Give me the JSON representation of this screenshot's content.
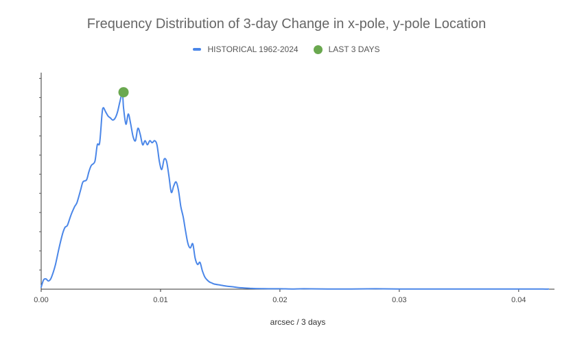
{
  "chart_data": {
    "type": "line",
    "title": "Frequency Distribution of 3-day Change in x-pole, y-pole Location",
    "xlabel": "arcsec / 3 days",
    "ylabel": "",
    "xlim": [
      0,
      0.043
    ],
    "ylim": [
      0,
      1.05
    ],
    "x_ticks": [
      "0.00",
      "0.01",
      "0.02",
      "0.03",
      "0.04"
    ],
    "x_tick_values": [
      0,
      0.01,
      0.02,
      0.03,
      0.04
    ],
    "legend_position": "top",
    "series": [
      {
        "name": "HISTORICAL 1962-2024",
        "color": "#4a86e8",
        "x": [
          0,
          0.0002,
          0.0004,
          0.0006,
          0.0008,
          0.001,
          0.0012,
          0.0015,
          0.0018,
          0.002,
          0.0022,
          0.0025,
          0.0028,
          0.003,
          0.0033,
          0.0035,
          0.0038,
          0.004,
          0.0042,
          0.0045,
          0.0047,
          0.0049,
          0.0051,
          0.0052,
          0.0054,
          0.0056,
          0.0058,
          0.006,
          0.0062,
          0.0064,
          0.0066,
          0.0068,
          0.0069,
          0.0071,
          0.0073,
          0.0075,
          0.0077,
          0.0079,
          0.0081,
          0.0083,
          0.0085,
          0.0087,
          0.0089,
          0.0091,
          0.0093,
          0.0095,
          0.0097,
          0.0099,
          0.0101,
          0.0103,
          0.0105,
          0.0107,
          0.0109,
          0.0111,
          0.0113,
          0.0115,
          0.0117,
          0.0119,
          0.0121,
          0.0123,
          0.0125,
          0.0127,
          0.0129,
          0.0131,
          0.0133,
          0.0135,
          0.0137,
          0.0139,
          0.0141,
          0.0143,
          0.0145,
          0.015,
          0.0155,
          0.016,
          0.0165,
          0.017,
          0.0175,
          0.018,
          0.019,
          0.02,
          0.021,
          0.022,
          0.024,
          0.026,
          0.028,
          0.03,
          0.032,
          0.034,
          0.036,
          0.038,
          0.04,
          0.042,
          0.0425
        ],
        "values": [
          0.01,
          0.045,
          0.05,
          0.04,
          0.05,
          0.08,
          0.12,
          0.2,
          0.27,
          0.3,
          0.31,
          0.36,
          0.4,
          0.42,
          0.48,
          0.52,
          0.53,
          0.57,
          0.6,
          0.62,
          0.7,
          0.71,
          0.85,
          0.88,
          0.86,
          0.84,
          0.83,
          0.82,
          0.83,
          0.86,
          0.91,
          0.95,
          0.88,
          0.8,
          0.85,
          0.8,
          0.74,
          0.72,
          0.78,
          0.75,
          0.7,
          0.72,
          0.7,
          0.72,
          0.71,
          0.72,
          0.7,
          0.62,
          0.58,
          0.63,
          0.62,
          0.55,
          0.47,
          0.5,
          0.52,
          0.48,
          0.4,
          0.35,
          0.28,
          0.22,
          0.2,
          0.22,
          0.15,
          0.12,
          0.13,
          0.09,
          0.06,
          0.045,
          0.035,
          0.03,
          0.025,
          0.02,
          0.015,
          0.012,
          0.008,
          0.006,
          0.004,
          0.003,
          0.002,
          0.002,
          0.001,
          0.002,
          0.001,
          0.001,
          0.002,
          0.001,
          0.001,
          0.001,
          0.001,
          0.001,
          0.001,
          0.0005,
          0.0005
        ]
      },
      {
        "name": "LAST 3 DAYS",
        "color": "#6aa84f",
        "x": [
          0.0069
        ],
        "values": [
          0.955
        ]
      }
    ]
  }
}
